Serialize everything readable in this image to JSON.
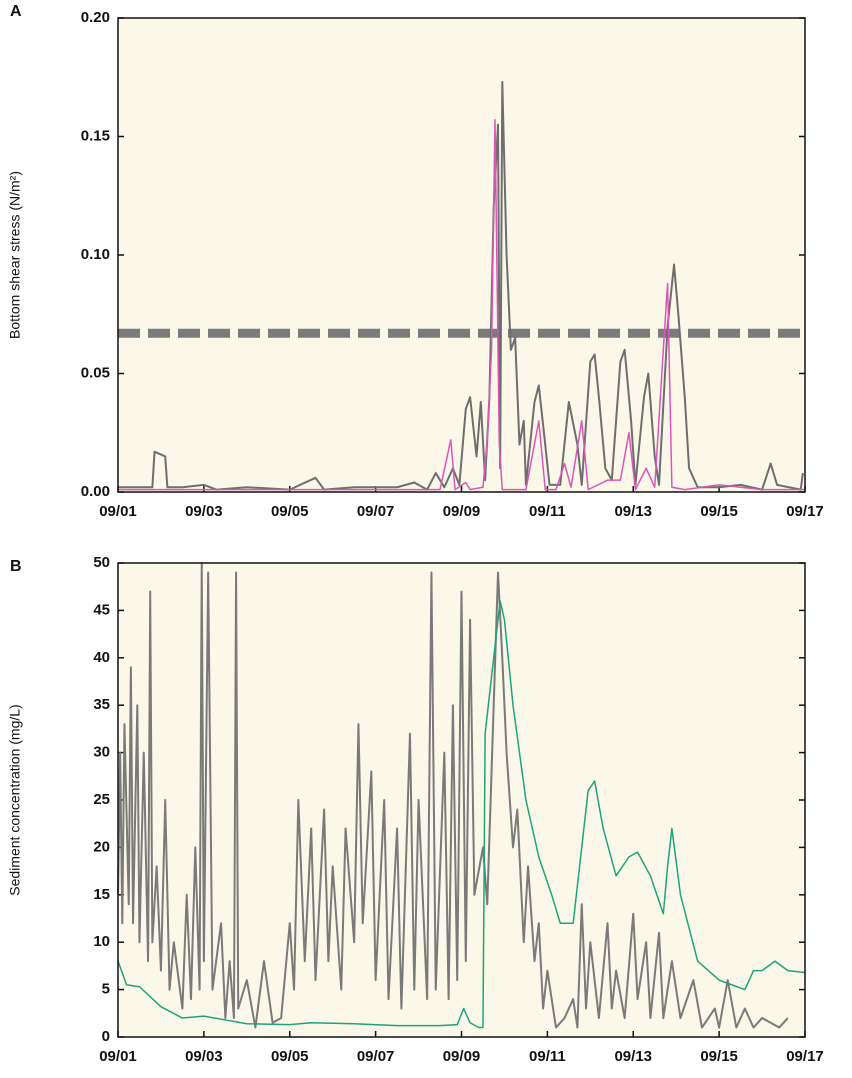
{
  "chart_data": [
    {
      "type": "line",
      "panel_label": "A",
      "ylabel": "Bottom shear stress (N/m²)",
      "xlim": [
        1,
        17
      ],
      "xticks": [
        {
          "value": 1,
          "label": "09/01"
        },
        {
          "value": 3,
          "label": "09/03"
        },
        {
          "value": 5,
          "label": "09/05"
        },
        {
          "value": 7,
          "label": "09/07"
        },
        {
          "value": 9,
          "label": "09/09"
        },
        {
          "value": 11,
          "label": "09/11"
        },
        {
          "value": 13,
          "label": "09/13"
        },
        {
          "value": 15,
          "label": "09/15"
        },
        {
          "value": 17,
          "label": "09/17"
        }
      ],
      "ylim": [
        0,
        0.2
      ],
      "yticks": [
        {
          "value": 0,
          "label": "0.00"
        },
        {
          "value": 0.05,
          "label": "0.05"
        },
        {
          "value": 0.1,
          "label": "0.10"
        },
        {
          "value": 0.15,
          "label": "0.15"
        },
        {
          "value": 0.2,
          "label": "0.20"
        }
      ],
      "hline": {
        "value": 0.067,
        "color": "#7a7a7a"
      },
      "series": [
        {
          "color": "#6e6e6e",
          "x": [
            1.0,
            1.8,
            1.85,
            2.1,
            2.15,
            2.5,
            3.0,
            3.3,
            4.0,
            5.0,
            5.6,
            5.8,
            6.5,
            7.5,
            7.9,
            8.2,
            8.4,
            8.6,
            8.8,
            8.95,
            9.1,
            9.2,
            9.35,
            9.45,
            9.55,
            9.65,
            9.75,
            9.85,
            9.9,
            9.95,
            10.05,
            10.15,
            10.25,
            10.35,
            10.45,
            10.5,
            10.7,
            10.8,
            10.95,
            11.05,
            11.3,
            11.5,
            11.7,
            11.8,
            12.0,
            12.1,
            12.2,
            12.35,
            12.5,
            12.7,
            12.8,
            12.95,
            13.05,
            13.25,
            13.35,
            13.5,
            13.6,
            13.8,
            13.95,
            14.05,
            14.2,
            14.3,
            14.5,
            15.0,
            15.5,
            16.0,
            16.2,
            16.35,
            16.9,
            16.95
          ],
          "values": [
            0.002,
            0.002,
            0.017,
            0.015,
            0.002,
            0.002,
            0.003,
            0.001,
            0.002,
            0.001,
            0.006,
            0.001,
            0.002,
            0.002,
            0.004,
            0.001,
            0.008,
            0.002,
            0.01,
            0.003,
            0.035,
            0.04,
            0.015,
            0.038,
            0.005,
            0.04,
            0.12,
            0.155,
            0.01,
            0.173,
            0.1,
            0.06,
            0.065,
            0.02,
            0.03,
            0.003,
            0.038,
            0.045,
            0.02,
            0.003,
            0.003,
            0.038,
            0.02,
            0.003,
            0.055,
            0.058,
            0.04,
            0.01,
            0.005,
            0.055,
            0.06,
            0.03,
            0.003,
            0.04,
            0.05,
            0.015,
            0.003,
            0.07,
            0.096,
            0.075,
            0.04,
            0.01,
            0.002,
            0.002,
            0.003,
            0.001,
            0.012,
            0.003,
            0.001,
            0.008
          ]
        },
        {
          "color": "#d957b8",
          "x": [
            1.0,
            8.0,
            8.5,
            8.75,
            8.85,
            9.1,
            9.2,
            9.5,
            9.6,
            9.7,
            9.78,
            9.88,
            9.95,
            10.2,
            10.5,
            10.8,
            10.95,
            11.2,
            11.4,
            11.55,
            11.8,
            11.95,
            12.4,
            12.7,
            12.9,
            13.05,
            13.3,
            13.5,
            13.7,
            13.8,
            13.9,
            14.2,
            15.0,
            16.0,
            17.0
          ],
          "values": [
            0.001,
            0.001,
            0.001,
            0.022,
            0.001,
            0.004,
            0.001,
            0.002,
            0.022,
            0.06,
            0.157,
            0.02,
            0.001,
            0.001,
            0.001,
            0.03,
            0.001,
            0.001,
            0.012,
            0.002,
            0.03,
            0.001,
            0.005,
            0.005,
            0.025,
            0.001,
            0.01,
            0.002,
            0.06,
            0.088,
            0.002,
            0.001,
            0.003,
            0.001,
            0.001
          ]
        }
      ]
    },
    {
      "type": "line",
      "panel_label": "B",
      "ylabel": "Sediment concentration (mg/L)",
      "xlim": [
        1,
        17
      ],
      "xticks": [
        {
          "value": 1,
          "label": "09/01"
        },
        {
          "value": 3,
          "label": "09/03"
        },
        {
          "value": 5,
          "label": "09/05"
        },
        {
          "value": 7,
          "label": "09/07"
        },
        {
          "value": 9,
          "label": "09/09"
        },
        {
          "value": 11,
          "label": "09/11"
        },
        {
          "value": 13,
          "label": "09/13"
        },
        {
          "value": 15,
          "label": "09/15"
        },
        {
          "value": 17,
          "label": "09/17"
        }
      ],
      "ylim": [
        0,
        50
      ],
      "yticks": [
        0,
        5,
        10,
        15,
        20,
        25,
        30,
        35,
        40,
        45,
        50
      ],
      "series": [
        {
          "color": "#7a7a7a",
          "x": [
            1.0,
            1.05,
            1.1,
            1.15,
            1.25,
            1.3,
            1.35,
            1.45,
            1.5,
            1.6,
            1.7,
            1.75,
            1.8,
            1.9,
            2.0,
            2.1,
            2.2,
            2.3,
            2.5,
            2.6,
            2.7,
            2.8,
            2.9,
            2.95,
            3.0,
            3.1,
            3.2,
            3.4,
            3.5,
            3.6,
            3.7,
            3.75,
            3.8,
            4.0,
            4.2,
            4.4,
            4.6,
            4.8,
            5.0,
            5.1,
            5.2,
            5.35,
            5.5,
            5.6,
            5.8,
            5.9,
            6.0,
            6.2,
            6.3,
            6.5,
            6.6,
            6.7,
            6.9,
            7.0,
            7.2,
            7.3,
            7.5,
            7.6,
            7.8,
            7.9,
            8.0,
            8.2,
            8.3,
            8.4,
            8.6,
            8.7,
            8.8,
            8.9,
            9.0,
            9.1,
            9.2,
            9.3,
            9.5,
            9.6,
            9.75,
            9.85,
            9.95,
            10.05,
            10.2,
            10.3,
            10.45,
            10.55,
            10.7,
            10.8,
            10.9,
            11.0,
            11.2,
            11.4,
            11.6,
            11.7,
            11.8,
            11.9,
            12.0,
            12.2,
            12.4,
            12.5,
            12.6,
            12.8,
            13.0,
            13.1,
            13.3,
            13.4,
            13.6,
            13.7,
            13.9,
            14.1,
            14.4,
            14.6,
            14.9,
            15.0,
            15.2,
            15.4,
            15.6,
            15.8,
            16.0,
            16.4,
            16.6
          ],
          "values": [
            15,
            30,
            12,
            33,
            14,
            39,
            12,
            35,
            10,
            30,
            8,
            47,
            10,
            18,
            7,
            25,
            5,
            10,
            3,
            15,
            4,
            20,
            5,
            50,
            8,
            49,
            5,
            12,
            2,
            8,
            2,
            49,
            3,
            6,
            1,
            8,
            1.5,
            2,
            12,
            5,
            25,
            8,
            22,
            6,
            24,
            8,
            18,
            5,
            22,
            10,
            33,
            12,
            28,
            6,
            25,
            4,
            22,
            3,
            32,
            5,
            25,
            4,
            49,
            5,
            30,
            4,
            35,
            6,
            47,
            8,
            44,
            15,
            20,
            14,
            35,
            49,
            40,
            30,
            20,
            24,
            10,
            18,
            8,
            12,
            3,
            7,
            1,
            2,
            4,
            1,
            14,
            3,
            10,
            2,
            12,
            3,
            7,
            2,
            13,
            4,
            10,
            2,
            11,
            2,
            8,
            2,
            6,
            1,
            3,
            1,
            6,
            1,
            3,
            1,
            2,
            1,
            2
          ]
        },
        {
          "color": "#1fa37a",
          "x": [
            1.0,
            1.2,
            1.5,
            2.0,
            2.5,
            3.0,
            3.5,
            4.0,
            5.0,
            5.5,
            6.5,
            7.5,
            8.5,
            8.9,
            9.05,
            9.2,
            9.4,
            9.5,
            9.55,
            9.7,
            9.9,
            10.0,
            10.2,
            10.5,
            10.8,
            11.1,
            11.3,
            11.6,
            11.8,
            11.95,
            12.1,
            12.3,
            12.6,
            12.9,
            13.1,
            13.4,
            13.7,
            13.8,
            13.9,
            14.1,
            14.5,
            15.0,
            15.3,
            15.6,
            15.8,
            16.0,
            16.3,
            16.6,
            17.0
          ],
          "values": [
            8,
            5.5,
            5.3,
            3.2,
            2.0,
            2.2,
            1.8,
            1.4,
            1.3,
            1.5,
            1.4,
            1.2,
            1.2,
            1.3,
            3,
            1.5,
            1,
            1,
            32,
            38,
            46,
            44,
            35,
            25,
            19,
            15,
            12,
            12,
            20,
            26,
            27,
            22,
            17,
            19,
            19.5,
            17,
            13,
            18,
            22,
            15,
            8,
            6,
            5.5,
            5,
            7,
            7,
            8,
            7,
            6.8
          ]
        }
      ]
    }
  ]
}
